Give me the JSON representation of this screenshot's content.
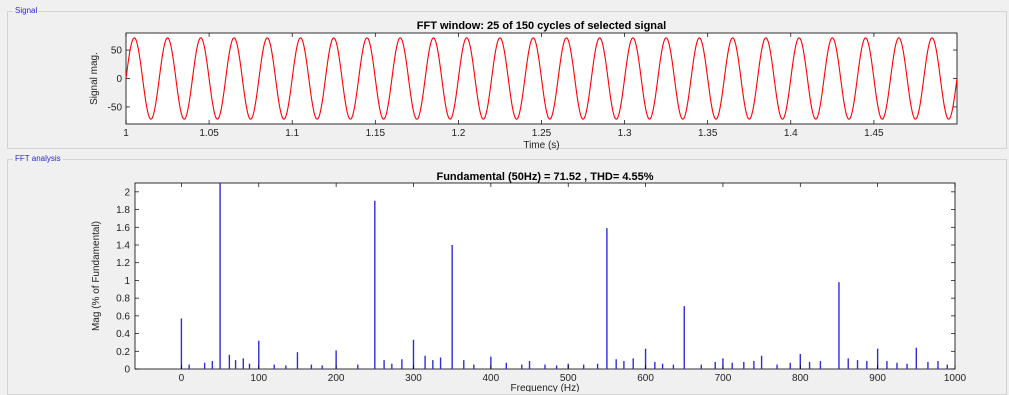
{
  "panels": {
    "signal_title": "Signal",
    "fft_title": "FFT analysis"
  },
  "chart_data": [
    {
      "type": "line",
      "title": "FFT window: 25 of 150 cycles of selected signal",
      "xlabel": "Time (s)",
      "ylabel": "Signal mag.",
      "xlim": [
        1,
        1.5
      ],
      "ylim": [
        -80,
        80
      ],
      "xticks": [
        1,
        1.05,
        1.1,
        1.15,
        1.2,
        1.25,
        1.3,
        1.35,
        1.4,
        1.45
      ],
      "yticks": [
        -50,
        0,
        50
      ],
      "series": [
        {
          "frequency_hz": 50,
          "amplitude": 71.52,
          "cycles": 25,
          "color": "#ff0000"
        }
      ],
      "grid": false
    },
    {
      "type": "bar",
      "title": "Fundamental (50Hz) = 71.52 , THD= 4.55%",
      "xlabel": "Frequency (Hz)",
      "ylabel": "Mag (% of Fundamental)",
      "xlim": [
        -60,
        1000
      ],
      "ylim": [
        0,
        2.1
      ],
      "xticks": [
        0,
        100,
        200,
        300,
        400,
        500,
        600,
        700,
        800,
        900,
        1000
      ],
      "yticks": [
        0,
        0.2,
        0.4,
        0.6,
        0.8,
        1,
        1.2,
        1.4,
        1.6,
        1.8,
        2
      ],
      "color": "#2c2cd8",
      "bars": [
        {
          "x": 0,
          "y": 0.57
        },
        {
          "x": 50,
          "y": 2.1
        },
        {
          "x": 100,
          "y": 0.32
        },
        {
          "x": 150,
          "y": 0.19
        },
        {
          "x": 200,
          "y": 0.21
        },
        {
          "x": 250,
          "y": 1.9
        },
        {
          "x": 300,
          "y": 0.33
        },
        {
          "x": 350,
          "y": 1.4
        },
        {
          "x": 400,
          "y": 0.14
        },
        {
          "x": 450,
          "y": 0.09
        },
        {
          "x": 500,
          "y": 0.06
        },
        {
          "x": 550,
          "y": 1.59
        },
        {
          "x": 600,
          "y": 0.23
        },
        {
          "x": 650,
          "y": 0.71
        },
        {
          "x": 700,
          "y": 0.12
        },
        {
          "x": 750,
          "y": 0.15
        },
        {
          "x": 800,
          "y": 0.17
        },
        {
          "x": 850,
          "y": 0.98
        },
        {
          "x": 900,
          "y": 0.23
        },
        {
          "x": 950,
          "y": 0.24
        },
        {
          "x": 10,
          "y": 0.05
        },
        {
          "x": 30,
          "y": 0.07
        },
        {
          "x": 40,
          "y": 0.09
        },
        {
          "x": 62,
          "y": 0.16
        },
        {
          "x": 70,
          "y": 0.1
        },
        {
          "x": 80,
          "y": 0.12
        },
        {
          "x": 88,
          "y": 0.06
        },
        {
          "x": 120,
          "y": 0.05
        },
        {
          "x": 135,
          "y": 0.04
        },
        {
          "x": 168,
          "y": 0.05
        },
        {
          "x": 182,
          "y": 0.04
        },
        {
          "x": 228,
          "y": 0.05
        },
        {
          "x": 262,
          "y": 0.1
        },
        {
          "x": 272,
          "y": 0.06
        },
        {
          "x": 285,
          "y": 0.11
        },
        {
          "x": 315,
          "y": 0.15
        },
        {
          "x": 325,
          "y": 0.1
        },
        {
          "x": 335,
          "y": 0.13
        },
        {
          "x": 365,
          "y": 0.1
        },
        {
          "x": 378,
          "y": 0.05
        },
        {
          "x": 420,
          "y": 0.07
        },
        {
          "x": 440,
          "y": 0.05
        },
        {
          "x": 470,
          "y": 0.05
        },
        {
          "x": 485,
          "y": 0.04
        },
        {
          "x": 520,
          "y": 0.05
        },
        {
          "x": 538,
          "y": 0.06
        },
        {
          "x": 562,
          "y": 0.11
        },
        {
          "x": 572,
          "y": 0.09
        },
        {
          "x": 584,
          "y": 0.12
        },
        {
          "x": 612,
          "y": 0.08
        },
        {
          "x": 622,
          "y": 0.06
        },
        {
          "x": 636,
          "y": 0.05
        },
        {
          "x": 672,
          "y": 0.05
        },
        {
          "x": 690,
          "y": 0.08
        },
        {
          "x": 712,
          "y": 0.07
        },
        {
          "x": 727,
          "y": 0.08
        },
        {
          "x": 740,
          "y": 0.09
        },
        {
          "x": 770,
          "y": 0.05
        },
        {
          "x": 787,
          "y": 0.07
        },
        {
          "x": 812,
          "y": 0.08
        },
        {
          "x": 826,
          "y": 0.09
        },
        {
          "x": 862,
          "y": 0.12
        },
        {
          "x": 874,
          "y": 0.1
        },
        {
          "x": 886,
          "y": 0.09
        },
        {
          "x": 912,
          "y": 0.09
        },
        {
          "x": 925,
          "y": 0.07
        },
        {
          "x": 938,
          "y": 0.06
        },
        {
          "x": 965,
          "y": 0.08
        },
        {
          "x": 978,
          "y": 0.09
        },
        {
          "x": 990,
          "y": 0.05
        }
      ],
      "grid": false
    }
  ]
}
